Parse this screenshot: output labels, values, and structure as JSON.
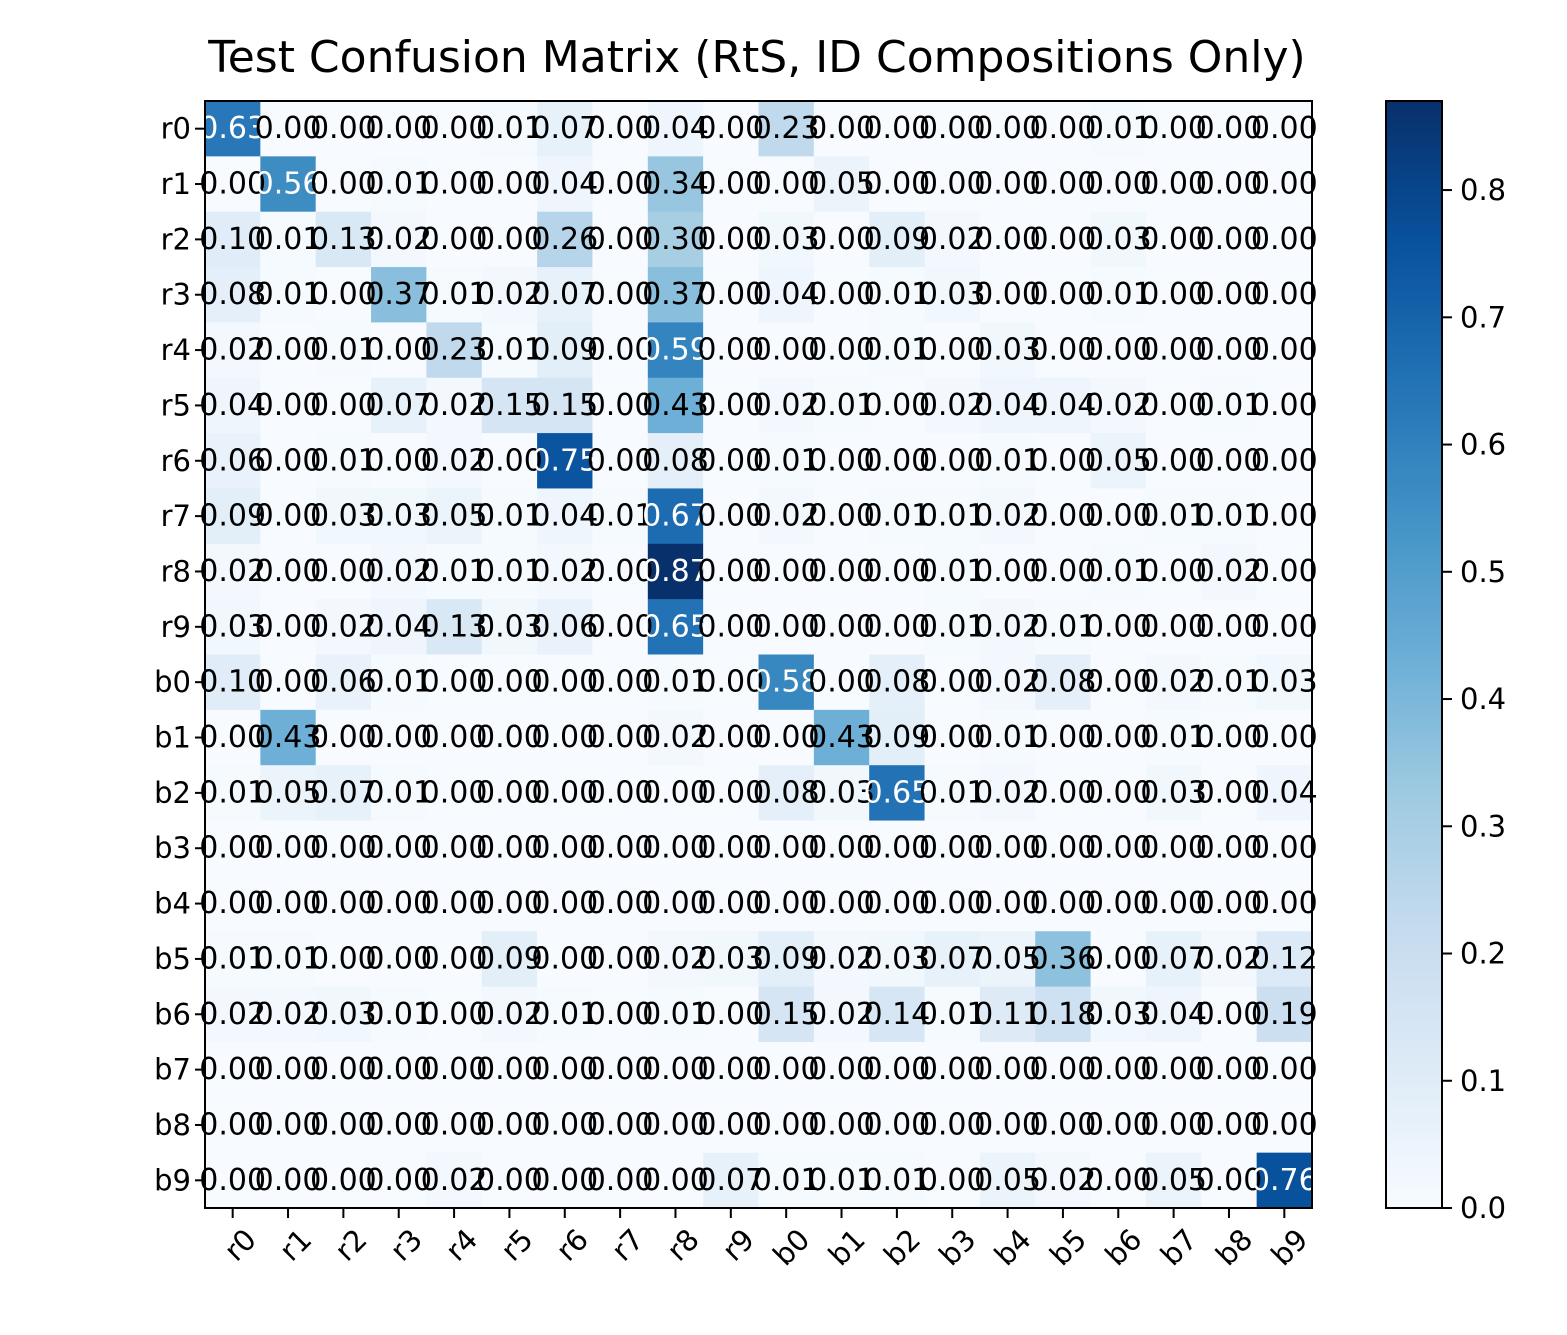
{
  "chart_data": {
    "type": "heatmap",
    "title": "Test Confusion Matrix (RtS, ID Compositions Only)",
    "xlabel": "",
    "ylabel": "",
    "categories": [
      "r0",
      "r1",
      "r2",
      "r3",
      "r4",
      "r5",
      "r6",
      "r7",
      "r8",
      "r9",
      "b0",
      "b1",
      "b2",
      "b3",
      "b4",
      "b5",
      "b6",
      "b7",
      "b8",
      "b9"
    ],
    "values": [
      [
        0.63,
        0.0,
        0.0,
        0.0,
        0.0,
        0.01,
        0.07,
        0.0,
        0.04,
        0.0,
        0.23,
        0.0,
        0.0,
        0.0,
        0.0,
        0.0,
        0.01,
        0.0,
        0.0,
        0.0
      ],
      [
        0.0,
        0.56,
        0.0,
        0.01,
        0.0,
        0.0,
        0.04,
        0.0,
        0.34,
        0.0,
        0.0,
        0.05,
        0.0,
        0.0,
        0.0,
        0.0,
        0.0,
        0.0,
        0.0,
        0.0
      ],
      [
        0.1,
        0.01,
        0.13,
        0.02,
        0.0,
        0.0,
        0.26,
        0.0,
        0.3,
        0.0,
        0.03,
        0.0,
        0.09,
        0.02,
        0.0,
        0.0,
        0.03,
        0.0,
        0.0,
        0.0
      ],
      [
        0.08,
        0.01,
        0.0,
        0.37,
        0.01,
        0.02,
        0.07,
        0.0,
        0.37,
        0.0,
        0.04,
        0.0,
        0.01,
        0.03,
        0.0,
        0.0,
        0.01,
        0.0,
        0.0,
        0.0
      ],
      [
        0.02,
        0.0,
        0.01,
        0.0,
        0.23,
        0.01,
        0.09,
        0.0,
        0.59,
        0.0,
        0.0,
        0.0,
        0.01,
        0.0,
        0.03,
        0.0,
        0.0,
        0.0,
        0.0,
        0.0
      ],
      [
        0.04,
        0.0,
        0.0,
        0.07,
        0.02,
        0.15,
        0.15,
        0.0,
        0.43,
        0.0,
        0.02,
        0.01,
        0.0,
        0.02,
        0.04,
        0.04,
        0.02,
        0.0,
        0.01,
        0.0
      ],
      [
        0.06,
        0.0,
        0.01,
        0.0,
        0.02,
        0.0,
        0.75,
        0.0,
        0.08,
        0.0,
        0.01,
        0.0,
        0.0,
        0.0,
        0.01,
        0.0,
        0.05,
        0.0,
        0.0,
        0.0
      ],
      [
        0.09,
        0.0,
        0.03,
        0.03,
        0.05,
        0.01,
        0.04,
        0.01,
        0.67,
        0.0,
        0.02,
        0.0,
        0.01,
        0.01,
        0.02,
        0.0,
        0.0,
        0.01,
        0.01,
        0.0
      ],
      [
        0.02,
        0.0,
        0.0,
        0.02,
        0.01,
        0.01,
        0.02,
        0.0,
        0.87,
        0.0,
        0.0,
        0.0,
        0.0,
        0.01,
        0.0,
        0.0,
        0.01,
        0.0,
        0.02,
        0.0
      ],
      [
        0.03,
        0.0,
        0.02,
        0.04,
        0.13,
        0.03,
        0.06,
        0.0,
        0.65,
        0.0,
        0.0,
        0.0,
        0.0,
        0.01,
        0.02,
        0.01,
        0.0,
        0.0,
        0.0,
        0.0
      ],
      [
        0.1,
        0.0,
        0.06,
        0.01,
        0.0,
        0.0,
        0.0,
        0.0,
        0.01,
        0.0,
        0.58,
        0.0,
        0.08,
        0.0,
        0.02,
        0.08,
        0.0,
        0.02,
        0.01,
        0.03
      ],
      [
        0.0,
        0.43,
        0.0,
        0.0,
        0.0,
        0.0,
        0.0,
        0.0,
        0.02,
        0.0,
        0.0,
        0.43,
        0.09,
        0.0,
        0.01,
        0.0,
        0.0,
        0.01,
        0.0,
        0.0
      ],
      [
        0.01,
        0.05,
        0.07,
        0.01,
        0.0,
        0.0,
        0.0,
        0.0,
        0.0,
        0.0,
        0.08,
        0.03,
        0.65,
        0.01,
        0.02,
        0.0,
        0.0,
        0.03,
        0.0,
        0.04
      ],
      [
        0.0,
        0.0,
        0.0,
        0.0,
        0.0,
        0.0,
        0.0,
        0.0,
        0.0,
        0.0,
        0.0,
        0.0,
        0.0,
        0.0,
        0.0,
        0.0,
        0.0,
        0.0,
        0.0,
        0.0
      ],
      [
        0.0,
        0.0,
        0.0,
        0.0,
        0.0,
        0.0,
        0.0,
        0.0,
        0.0,
        0.0,
        0.0,
        0.0,
        0.0,
        0.0,
        0.0,
        0.0,
        0.0,
        0.0,
        0.0,
        0.0
      ],
      [
        0.01,
        0.01,
        0.0,
        0.0,
        0.0,
        0.09,
        0.0,
        0.0,
        0.02,
        0.03,
        0.09,
        0.02,
        0.03,
        0.07,
        0.05,
        0.36,
        0.0,
        0.07,
        0.02,
        0.12
      ],
      [
        0.02,
        0.02,
        0.03,
        0.01,
        0.0,
        0.02,
        0.01,
        0.0,
        0.01,
        0.0,
        0.15,
        0.02,
        0.14,
        0.01,
        0.11,
        0.18,
        0.03,
        0.04,
        0.0,
        0.19
      ],
      [
        0.0,
        0.0,
        0.0,
        0.0,
        0.0,
        0.0,
        0.0,
        0.0,
        0.0,
        0.0,
        0.0,
        0.0,
        0.0,
        0.0,
        0.0,
        0.0,
        0.0,
        0.0,
        0.0,
        0.0
      ],
      [
        0.0,
        0.0,
        0.0,
        0.0,
        0.0,
        0.0,
        0.0,
        0.0,
        0.0,
        0.0,
        0.0,
        0.0,
        0.0,
        0.0,
        0.0,
        0.0,
        0.0,
        0.0,
        0.0,
        0.0
      ],
      [
        0.0,
        0.0,
        0.0,
        0.0,
        0.02,
        0.0,
        0.0,
        0.0,
        0.0,
        0.07,
        0.01,
        0.01,
        0.01,
        0.0,
        0.05,
        0.02,
        0.0,
        0.05,
        0.0,
        0.76
      ]
    ],
    "colormap": "Blues",
    "colorbar": {
      "min": 0.0,
      "max": 0.87,
      "ticks": [
        "0.0",
        "0.1",
        "0.2",
        "0.3",
        "0.4",
        "0.5",
        "0.6",
        "0.7",
        "0.8"
      ]
    }
  }
}
